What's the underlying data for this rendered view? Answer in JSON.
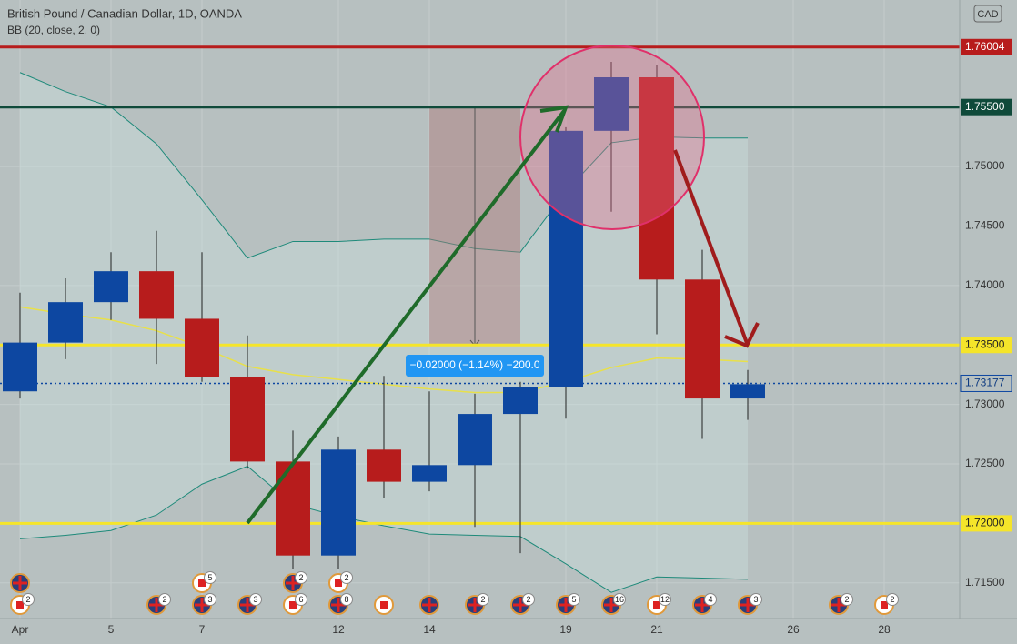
{
  "chart_data": {
    "type": "candlestick",
    "title": "British Pound / Canadian Dollar, 1D, OANDA",
    "subtitle": "BB (20, close, 2, 0)",
    "currency": "CAD",
    "categories": [
      "Apr",
      null,
      "5",
      null,
      "7",
      null,
      null,
      "12",
      null,
      "14",
      null,
      null,
      "19",
      null,
      "21",
      null,
      null,
      "26",
      null,
      "28"
    ],
    "open": [
      1.7311,
      1.7352,
      1.7386,
      1.7412,
      1.7372,
      1.7323,
      1.7252,
      1.7173,
      1.7262,
      1.7235,
      1.7249,
      1.7292,
      1.7315,
      1.753,
      1.7575,
      1.7405,
      1.7305,
      null,
      null,
      null
    ],
    "high": [
      1.7394,
      1.7406,
      1.7428,
      1.7446,
      1.7428,
      1.7358,
      1.7278,
      1.7273,
      1.7324,
      1.7311,
      1.7309,
      1.7319,
      1.7533,
      1.7588,
      1.7585,
      1.743,
      1.7329,
      null,
      null,
      null
    ],
    "low": [
      1.7305,
      1.7338,
      1.7371,
      1.7334,
      1.7319,
      1.7246,
      1.7162,
      1.7162,
      1.7221,
      1.7227,
      1.7197,
      1.7175,
      1.7288,
      1.7462,
      1.7359,
      1.7271,
      1.7287,
      null,
      null,
      null
    ],
    "close": [
      1.7352,
      1.7386,
      1.7412,
      1.7372,
      1.7323,
      1.7252,
      1.7173,
      1.7262,
      1.7235,
      1.7249,
      1.7292,
      1.7315,
      1.753,
      1.7575,
      1.7405,
      1.7305,
      1.7317,
      null,
      null,
      null
    ],
    "up_color": "#0d47a1",
    "down_color": "#b71c1c",
    "series": [
      {
        "color": "#1e8a7a",
        "values": [
          1.7579,
          1.7563,
          1.755,
          1.7519,
          1.7472,
          1.7423,
          1.7437,
          1.7437,
          1.7439,
          1.7439,
          1.7431,
          1.7428,
          1.7479,
          1.752,
          1.7525,
          1.7524,
          1.7524,
          null,
          null,
          null
        ]
      },
      {
        "color": "#e8e04a",
        "values": [
          1.7382,
          1.7376,
          1.7371,
          1.7362,
          1.7348,
          1.7332,
          1.7325,
          1.7321,
          1.7317,
          1.7313,
          1.731,
          1.731,
          1.7319,
          1.7331,
          1.7339,
          1.7338,
          1.7336,
          null,
          null,
          null
        ]
      },
      {
        "color": "#1e8a7a",
        "values": [
          1.7187,
          1.719,
          1.7194,
          1.7207,
          1.7233,
          1.7248,
          1.7216,
          1.7206,
          1.7198,
          1.7191,
          1.719,
          1.7189,
          1.7166,
          1.7142,
          1.7155,
          1.7154,
          1.7153,
          null,
          null,
          null
        ]
      }
    ],
    "ylim": [
      1.712,
      1.764
    ],
    "yticks": [
      {
        "value": 1.715,
        "label": "1.71500"
      },
      {
        "value": 1.725,
        "label": "1.72500"
      },
      {
        "value": 1.73,
        "label": "1.73000"
      },
      {
        "value": 1.74,
        "label": "1.74000"
      },
      {
        "value": 1.745,
        "label": "1.74500"
      },
      {
        "value": 1.75,
        "label": "1.75000"
      }
    ],
    "levels": [
      {
        "value": 1.76004,
        "label": "1.76004",
        "color": "#b71c1c"
      },
      {
        "value": 1.755,
        "label": "1.75500",
        "color": "#0f4a3a"
      },
      {
        "value": 1.735,
        "label": "1.73500",
        "color": "#f5e52a"
      },
      {
        "value": 1.72,
        "label": "1.72000",
        "color": "#f5e52a"
      }
    ],
    "last_price": {
      "value": 1.73177,
      "label": "1.73177",
      "color": "#0d47a1"
    },
    "measure_label": "−0.02000 (−1.14%) −200.0",
    "events_top": [
      {
        "flag": "uk"
      },
      null,
      null,
      null,
      {
        "flag": "ca",
        "count": 5
      },
      null,
      {
        "flag": "uk",
        "count": 2
      },
      {
        "flag": "ca",
        "count": 2
      },
      null,
      null,
      null,
      null,
      null,
      null,
      null,
      null,
      null,
      null,
      null,
      null
    ],
    "events_bottom": [
      {
        "flag": "ca",
        "count": 2
      },
      null,
      null,
      {
        "flag": "uk",
        "count": 2
      },
      {
        "flag": "uk",
        "count": 3
      },
      {
        "flag": "uk",
        "count": 3
      },
      {
        "flag": "ca",
        "count": 6
      },
      {
        "flag": "uk",
        "count": 8
      },
      {
        "flag": "ca"
      },
      {
        "flag": "uk"
      },
      {
        "flag": "uk",
        "count": 2
      },
      {
        "flag": "uk",
        "count": 2
      },
      {
        "flag": "uk",
        "count": 5
      },
      {
        "flag": "uk",
        "count": 16
      },
      {
        "flag": "ca",
        "count": 12
      },
      {
        "flag": "uk",
        "count": 4
      },
      {
        "flag": "uk",
        "count": 3
      },
      null,
      {
        "flag": "uk",
        "count": 2
      },
      {
        "flag": "ca",
        "count": 2
      }
    ]
  }
}
